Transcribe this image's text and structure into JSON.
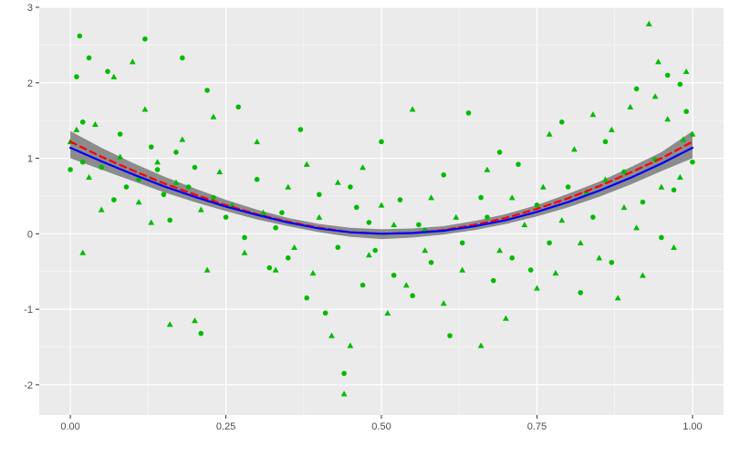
{
  "chart_data": {
    "type": "scatter",
    "title": "",
    "xlabel": "",
    "ylabel": "",
    "xlim": [
      -0.05,
      1.05
    ],
    "ylim": [
      -2.4,
      3.0
    ],
    "xticks": [
      0,
      0.25,
      0.5,
      0.75,
      1.0
    ],
    "xtick_labels": [
      "0.00",
      "0.25",
      "0.50",
      "0.75",
      "1.00"
    ],
    "yticks": [
      -2,
      -1,
      0,
      1,
      2,
      3
    ],
    "ytick_labels": [
      "-2",
      "-1",
      "0",
      "1",
      "2",
      "3"
    ],
    "grid": true,
    "panel_background": "#ebebeb",
    "grid_color": "#ffffff",
    "point_color": "#00bb00",
    "ribbon_color": "#8c8c8c",
    "series": [
      {
        "type": "scatter",
        "marker": "circle",
        "points": [
          [
            0.0,
            0.85
          ],
          [
            0.01,
            2.08
          ],
          [
            0.015,
            2.62
          ],
          [
            0.02,
            1.48
          ],
          [
            0.02,
            0.95
          ],
          [
            0.03,
            2.33
          ],
          [
            0.05,
            0.88
          ],
          [
            0.06,
            2.15
          ],
          [
            0.08,
            1.32
          ],
          [
            0.09,
            0.62
          ],
          [
            0.11,
            0.72
          ],
          [
            0.12,
            2.58
          ],
          [
            0.13,
            1.15
          ],
          [
            0.15,
            0.52
          ],
          [
            0.16,
            0.18
          ],
          [
            0.17,
            1.08
          ],
          [
            0.18,
            2.33
          ],
          [
            0.19,
            0.62
          ],
          [
            0.2,
            0.88
          ],
          [
            0.21,
            -1.32
          ],
          [
            0.22,
            1.9
          ],
          [
            0.23,
            0.48
          ],
          [
            0.25,
            0.22
          ],
          [
            0.27,
            1.68
          ],
          [
            0.28,
            -0.05
          ],
          [
            0.3,
            0.72
          ],
          [
            0.32,
            -0.45
          ],
          [
            0.34,
            0.28
          ],
          [
            0.35,
            -0.32
          ],
          [
            0.37,
            1.38
          ],
          [
            0.38,
            -0.85
          ],
          [
            0.4,
            0.52
          ],
          [
            0.41,
            -1.05
          ],
          [
            0.43,
            -0.18
          ],
          [
            0.44,
            -1.85
          ],
          [
            0.45,
            0.62
          ],
          [
            0.47,
            -0.68
          ],
          [
            0.48,
            0.15
          ],
          [
            0.49,
            -0.22
          ],
          [
            0.5,
            1.22
          ],
          [
            0.52,
            -0.55
          ],
          [
            0.53,
            0.45
          ],
          [
            0.55,
            -0.82
          ],
          [
            0.56,
            0.12
          ],
          [
            0.58,
            -0.38
          ],
          [
            0.6,
            0.78
          ],
          [
            0.61,
            -1.35
          ],
          [
            0.63,
            -0.12
          ],
          [
            0.64,
            1.6
          ],
          [
            0.66,
            0.48
          ],
          [
            0.68,
            -0.62
          ],
          [
            0.69,
            1.08
          ],
          [
            0.71,
            -0.32
          ],
          [
            0.72,
            0.92
          ],
          [
            0.74,
            -0.48
          ],
          [
            0.75,
            0.38
          ],
          [
            0.77,
            -0.12
          ],
          [
            0.79,
            1.48
          ],
          [
            0.8,
            0.62
          ],
          [
            0.82,
            -0.78
          ],
          [
            0.84,
            0.22
          ],
          [
            0.86,
            1.22
          ],
          [
            0.87,
            -0.38
          ],
          [
            0.89,
            0.82
          ],
          [
            0.91,
            1.92
          ],
          [
            0.92,
            0.42
          ],
          [
            0.94,
            0.98
          ],
          [
            0.95,
            -0.05
          ],
          [
            0.96,
            2.1
          ],
          [
            0.97,
            0.58
          ],
          [
            0.98,
            1.98
          ],
          [
            0.99,
            1.62
          ],
          [
            1.0,
            0.95
          ],
          [
            0.07,
            0.45
          ],
          [
            0.14,
            0.85
          ],
          [
            0.33,
            0.08
          ],
          [
            0.46,
            0.35
          ],
          [
            0.57,
            0.05
          ],
          [
            0.67,
            0.22
          ],
          [
            0.83,
            0.55
          ]
        ]
      },
      {
        "type": "scatter",
        "marker": "triangle",
        "points": [
          [
            0.0,
            1.22
          ],
          [
            0.01,
            1.38
          ],
          [
            0.02,
            -0.25
          ],
          [
            0.03,
            0.75
          ],
          [
            0.04,
            1.45
          ],
          [
            0.05,
            0.32
          ],
          [
            0.07,
            2.08
          ],
          [
            0.08,
            1.02
          ],
          [
            0.1,
            2.28
          ],
          [
            0.11,
            0.42
          ],
          [
            0.12,
            1.65
          ],
          [
            0.13,
            0.15
          ],
          [
            0.14,
            0.95
          ],
          [
            0.16,
            -1.2
          ],
          [
            0.17,
            0.68
          ],
          [
            0.18,
            1.25
          ],
          [
            0.2,
            -1.15
          ],
          [
            0.21,
            0.32
          ],
          [
            0.22,
            -0.48
          ],
          [
            0.23,
            1.55
          ],
          [
            0.24,
            0.82
          ],
          [
            0.26,
            0.38
          ],
          [
            0.28,
            -0.25
          ],
          [
            0.3,
            1.22
          ],
          [
            0.31,
            0.28
          ],
          [
            0.33,
            -0.48
          ],
          [
            0.35,
            0.62
          ],
          [
            0.36,
            -0.18
          ],
          [
            0.38,
            0.92
          ],
          [
            0.39,
            -0.52
          ],
          [
            0.4,
            0.22
          ],
          [
            0.42,
            -1.35
          ],
          [
            0.43,
            0.68
          ],
          [
            0.44,
            -2.12
          ],
          [
            0.45,
            -1.48
          ],
          [
            0.47,
            0.88
          ],
          [
            0.48,
            -0.28
          ],
          [
            0.5,
            0.38
          ],
          [
            0.51,
            -1.05
          ],
          [
            0.52,
            0.12
          ],
          [
            0.54,
            -0.68
          ],
          [
            0.55,
            1.65
          ],
          [
            0.57,
            -0.22
          ],
          [
            0.58,
            0.48
          ],
          [
            0.6,
            -0.92
          ],
          [
            0.62,
            0.22
          ],
          [
            0.63,
            -0.48
          ],
          [
            0.66,
            -1.48
          ],
          [
            0.67,
            0.85
          ],
          [
            0.69,
            -0.22
          ],
          [
            0.7,
            -1.12
          ],
          [
            0.71,
            0.48
          ],
          [
            0.73,
            0.12
          ],
          [
            0.75,
            -0.72
          ],
          [
            0.76,
            0.62
          ],
          [
            0.77,
            1.32
          ],
          [
            0.78,
            -0.52
          ],
          [
            0.79,
            0.18
          ],
          [
            0.81,
            1.12
          ],
          [
            0.82,
            -0.12
          ],
          [
            0.83,
            0.55
          ],
          [
            0.84,
            1.58
          ],
          [
            0.85,
            -0.32
          ],
          [
            0.86,
            0.72
          ],
          [
            0.87,
            1.38
          ],
          [
            0.88,
            -0.85
          ],
          [
            0.89,
            0.35
          ],
          [
            0.9,
            1.68
          ],
          [
            0.91,
            0.08
          ],
          [
            0.92,
            -0.55
          ],
          [
            0.93,
            2.78
          ],
          [
            0.94,
            1.82
          ],
          [
            0.945,
            2.28
          ],
          [
            0.95,
            0.62
          ],
          [
            0.96,
            1.52
          ],
          [
            0.97,
            -0.18
          ],
          [
            0.98,
            0.75
          ],
          [
            0.985,
            1.25
          ],
          [
            0.99,
            2.15
          ],
          [
            1.0,
            1.32
          ]
        ]
      },
      {
        "type": "line",
        "name": "",
        "color": "#ff0000",
        "dash": "dashed",
        "x": [
          0.0,
          0.05,
          0.1,
          0.15,
          0.2,
          0.25,
          0.3,
          0.35,
          0.4,
          0.45,
          0.5,
          0.55,
          0.6,
          0.65,
          0.7,
          0.75,
          0.8,
          0.85,
          0.9,
          0.95,
          1.0
        ],
        "y": [
          1.22,
          1.02,
          0.84,
          0.67,
          0.52,
          0.38,
          0.26,
          0.16,
          0.08,
          0.02,
          0.0,
          0.01,
          0.05,
          0.12,
          0.21,
          0.33,
          0.47,
          0.63,
          0.81,
          1.0,
          1.22
        ]
      },
      {
        "type": "line",
        "name": "",
        "color": "#0000ff",
        "dash": "solid",
        "x": [
          0.0,
          0.05,
          0.1,
          0.15,
          0.2,
          0.25,
          0.3,
          0.35,
          0.4,
          0.45,
          0.5,
          0.55,
          0.6,
          0.65,
          0.7,
          0.75,
          0.8,
          0.85,
          0.9,
          0.95,
          1.0
        ],
        "y": [
          1.14,
          0.96,
          0.79,
          0.63,
          0.49,
          0.36,
          0.25,
          0.15,
          0.07,
          0.02,
          0.0,
          0.01,
          0.04,
          0.1,
          0.18,
          0.29,
          0.42,
          0.57,
          0.74,
          0.93,
          1.14
        ]
      },
      {
        "type": "ribbon",
        "x": [
          0.0,
          0.05,
          0.1,
          0.15,
          0.2,
          0.25,
          0.3,
          0.35,
          0.4,
          0.45,
          0.5,
          0.55,
          0.6,
          0.65,
          0.7,
          0.75,
          0.8,
          0.85,
          0.9,
          0.95,
          1.0
        ],
        "lower": [
          1.0,
          0.85,
          0.7,
          0.55,
          0.42,
          0.3,
          0.19,
          0.1,
          0.02,
          -0.04,
          -0.07,
          -0.05,
          -0.01,
          0.05,
          0.13,
          0.23,
          0.35,
          0.49,
          0.65,
          0.83,
          1.0
        ],
        "upper": [
          1.36,
          1.14,
          0.94,
          0.76,
          0.6,
          0.45,
          0.32,
          0.21,
          0.13,
          0.08,
          0.06,
          0.07,
          0.1,
          0.17,
          0.26,
          0.38,
          0.53,
          0.69,
          0.88,
          1.08,
          1.36
        ]
      }
    ]
  }
}
